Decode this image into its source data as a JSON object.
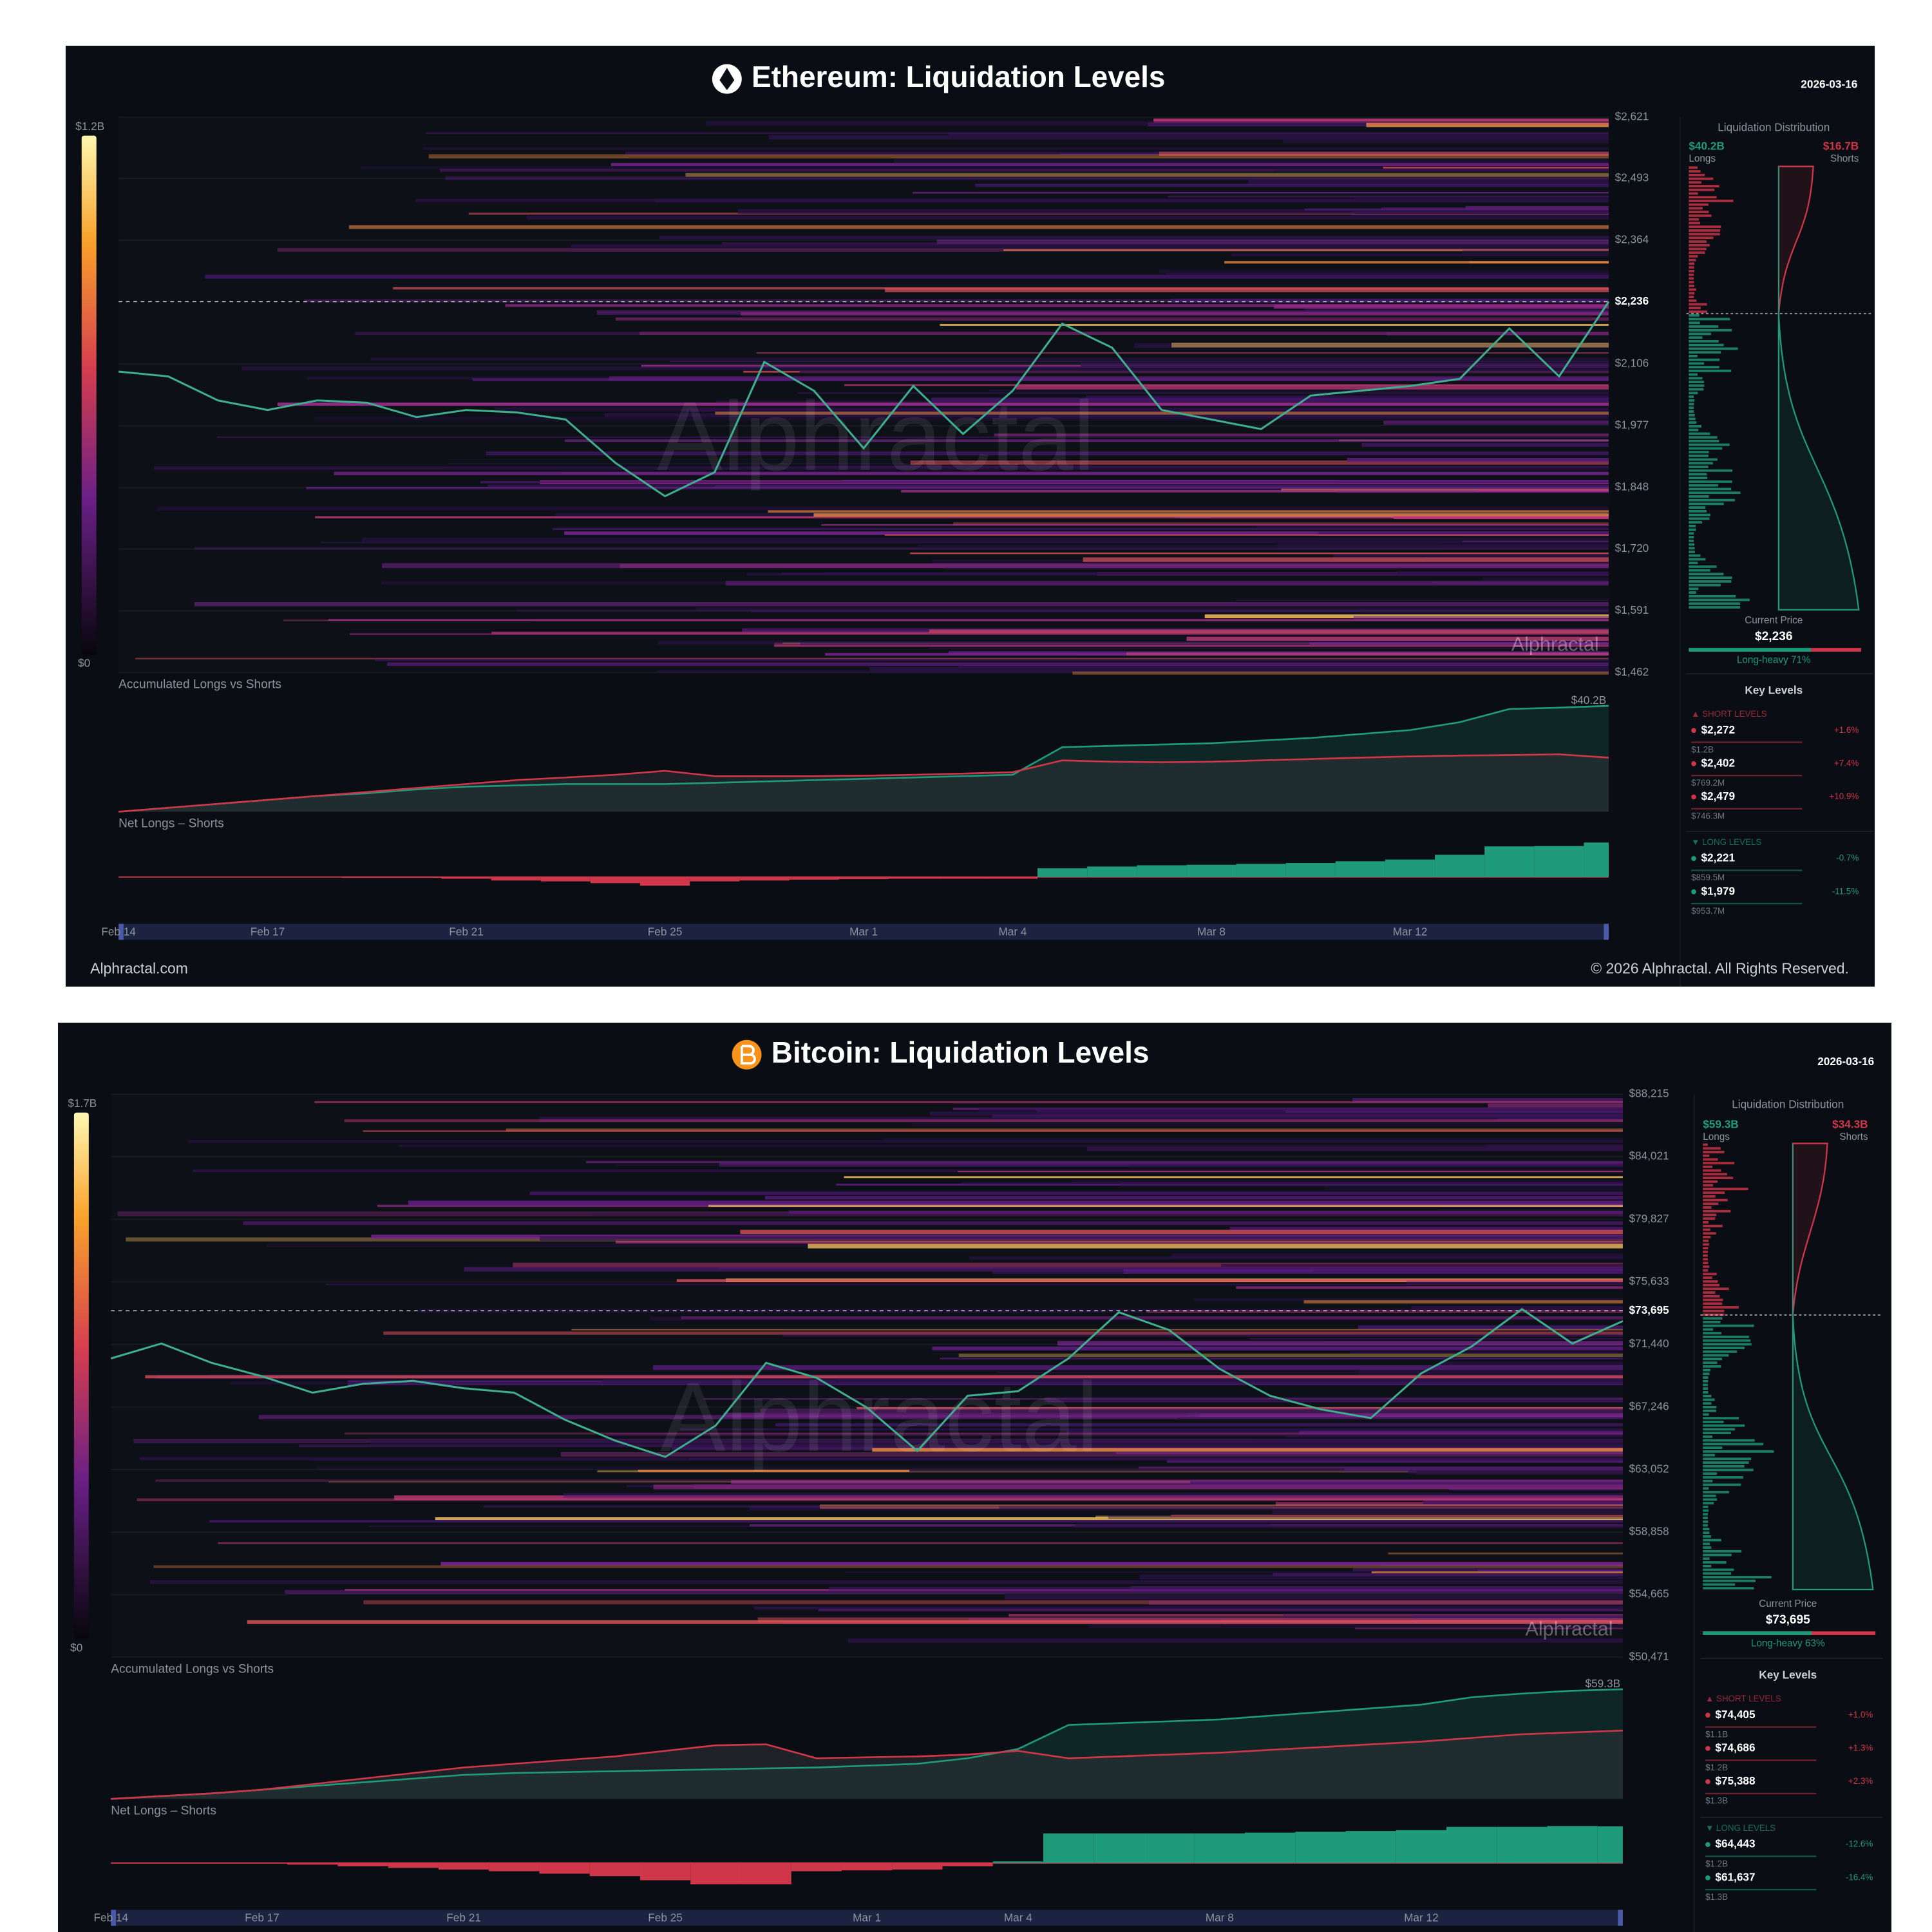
{
  "chart_data": [
    {
      "type": "line",
      "title": "Ethereum: Liquidation Levels",
      "date": "2026-03-16",
      "color_scale": {
        "max_label": "$1.2B",
        "min_label": "$0"
      },
      "x": [
        "Feb 14",
        "Feb 15",
        "Feb 16",
        "Feb 17",
        "Feb 18",
        "Feb 19",
        "Feb 20",
        "Feb 21",
        "Feb 22",
        "Feb 23",
        "Feb 24",
        "Feb 25",
        "Feb 26",
        "Feb 27",
        "Feb 28",
        "Mar 1",
        "Mar 2",
        "Mar 3",
        "Mar 4",
        "Mar 5",
        "Mar 6",
        "Mar 7",
        "Mar 8",
        "Mar 9",
        "Mar 10",
        "Mar 11",
        "Mar 12",
        "Mar 13",
        "Mar 14",
        "Mar 15",
        "Mar 16"
      ],
      "xticks": [
        "Feb 14",
        "Feb 17",
        "Feb 21",
        "Feb 25",
        "Mar 1",
        "Mar 4",
        "Mar 8",
        "Mar 12"
      ],
      "ylim": [
        1462,
        2621
      ],
      "yticks": [
        {
          "value": 1462,
          "label": "$1,462"
        },
        {
          "value": 1591,
          "label": "$1,591"
        },
        {
          "value": 1720,
          "label": "$1,720"
        },
        {
          "value": 1848,
          "label": "$1,848"
        },
        {
          "value": 1977,
          "label": "$1,977"
        },
        {
          "value": 2106,
          "label": "$2,106"
        },
        {
          "value": 2364,
          "label": "$2,364"
        },
        {
          "value": 2493,
          "label": "$2,493"
        },
        {
          "value": 2621,
          "label": "$2,621"
        }
      ],
      "current_price": {
        "value": 2236,
        "label": "$2,236"
      },
      "color": "#3fae8f",
      "values": [
        2090,
        2080,
        2030,
        2010,
        2030,
        2025,
        1995,
        2010,
        2005,
        1990,
        1900,
        1830,
        1880,
        2110,
        2050,
        1930,
        2060,
        1960,
        2050,
        2190,
        2140,
        2010,
        1990,
        1970,
        2040,
        2050,
        2060,
        2075,
        2180,
        2080,
        2236
      ],
      "accumulated": {
        "title": "Accumulated Longs vs Shorts",
        "end_label": "$40.2B",
        "longs": {
          "color": "#1f9a7a",
          "values": [
            0,
            1.5,
            3,
            4.5,
            6,
            7,
            8.5,
            9.5,
            10,
            10.5,
            10.5,
            10.5,
            11,
            11.5,
            12,
            12.5,
            13,
            13.5,
            14,
            24.5,
            25,
            25.5,
            26,
            27,
            28,
            29.5,
            31,
            34,
            39,
            39.5,
            40.2
          ]
        },
        "shorts": {
          "color": "#d0364a",
          "values": [
            0,
            1.5,
            3,
            4.5,
            6,
            7.5,
            9,
            10.5,
            12,
            13,
            14,
            15.5,
            13.5,
            13.5,
            13.5,
            13.7,
            14,
            14.5,
            15,
            19.5,
            19,
            18.8,
            19,
            19.5,
            20,
            20.5,
            21,
            21.3,
            21.5,
            21.8,
            20.5
          ]
        }
      },
      "net": {
        "title": "Net Longs – Shorts"
      },
      "distribution": {
        "title": "Liquidation Distribution",
        "longs_total": "$40.2B",
        "longs_label": "Longs",
        "shorts_total": "$16.7B",
        "shorts_label": "Shorts",
        "current_price_label": "Current Price",
        "bias": "Long-heavy 71%",
        "long_share": 71
      },
      "key_levels": {
        "title": "Key Levels",
        "short_heading": "▲ SHORT LEVELS",
        "short": [
          {
            "price": "$2,272",
            "change": "+1.6%",
            "size": "$1.2B"
          },
          {
            "price": "$2,402",
            "change": "+7.4%",
            "size": "$769.2M"
          },
          {
            "price": "$2,479",
            "change": "+10.9%",
            "size": "$746.3M"
          }
        ],
        "long_heading": "▼ LONG LEVELS",
        "long": [
          {
            "price": "$2,221",
            "change": "-0.7%",
            "size": "$859.5M"
          },
          {
            "price": "$1,979",
            "change": "-11.5%",
            "size": "$953.7M"
          }
        ]
      },
      "watermark": "Alphractal",
      "footer": {
        "left": "Alphractal.com",
        "right": "© 2026 Alphractal. All Rights Reserved."
      }
    },
    {
      "type": "line",
      "title": "Bitcoin: Liquidation Levels",
      "date": "2026-03-16",
      "color_scale": {
        "max_label": "$1.7B",
        "min_label": "$0"
      },
      "x": [
        "Feb 14",
        "Feb 15",
        "Feb 16",
        "Feb 17",
        "Feb 18",
        "Feb 19",
        "Feb 20",
        "Feb 21",
        "Feb 22",
        "Feb 23",
        "Feb 24",
        "Feb 25",
        "Feb 26",
        "Feb 27",
        "Feb 28",
        "Mar 1",
        "Mar 2",
        "Mar 3",
        "Mar 4",
        "Mar 5",
        "Mar 6",
        "Mar 7",
        "Mar 8",
        "Mar 9",
        "Mar 10",
        "Mar 11",
        "Mar 12",
        "Mar 13",
        "Mar 14",
        "Mar 15",
        "Mar 16"
      ],
      "xticks": [
        "Feb 14",
        "Feb 17",
        "Feb 21",
        "Feb 25",
        "Mar 1",
        "Mar 4",
        "Mar 8",
        "Mar 12"
      ],
      "ylim": [
        50471,
        88215
      ],
      "yticks": [
        {
          "value": 50471,
          "label": "$50,471"
        },
        {
          "value": 54665,
          "label": "$54,665"
        },
        {
          "value": 58858,
          "label": "$58,858"
        },
        {
          "value": 63052,
          "label": "$63,052"
        },
        {
          "value": 67246,
          "label": "$67,246"
        },
        {
          "value": 71440,
          "label": "$71,440"
        },
        {
          "value": 75633,
          "label": "$75,633"
        },
        {
          "value": 79827,
          "label": "$79,827"
        },
        {
          "value": 84021,
          "label": "$84,021"
        },
        {
          "value": 88215,
          "label": "$88,215"
        }
      ],
      "current_price": {
        "value": 73695,
        "label": "$73,695"
      },
      "color": "#3fae8f",
      "values": [
        70500,
        71500,
        70200,
        69300,
        68200,
        68800,
        69000,
        68500,
        68200,
        66400,
        65000,
        63900,
        66000,
        70200,
        69200,
        67200,
        64300,
        68000,
        68300,
        70500,
        73600,
        72400,
        69800,
        68000,
        67100,
        66500,
        69500,
        71300,
        73800,
        71500,
        73000
      ],
      "accumulated": {
        "title": "Accumulated Longs vs Shorts",
        "end_label": "$59.3B",
        "longs": {
          "color": "#1f9a7a",
          "values": [
            0,
            1.5,
            3,
            5,
            7,
            9,
            11,
            13,
            14,
            14.5,
            15,
            15.5,
            16,
            16.5,
            17,
            18,
            19,
            22,
            27,
            40,
            41,
            42,
            43,
            45,
            47,
            49,
            51,
            55,
            57,
            58.5,
            59.3
          ]
        },
        "shorts": {
          "color": "#d0364a",
          "values": [
            0,
            1.5,
            3,
            5,
            8,
            11,
            14,
            17,
            19,
            21,
            23,
            26,
            29,
            29.5,
            22,
            22.5,
            23,
            24,
            26,
            22,
            23,
            24,
            25,
            26.5,
            28,
            29.5,
            31,
            33,
            35,
            36,
            37
          ]
        }
      },
      "net": {
        "title": "Net Longs – Shorts"
      },
      "distribution": {
        "title": "Liquidation Distribution",
        "longs_total": "$59.3B",
        "longs_label": "Longs",
        "shorts_total": "$34.3B",
        "shorts_label": "Shorts",
        "current_price_label": "Current Price",
        "bias": "Long-heavy 63%",
        "long_share": 63
      },
      "key_levels": {
        "title": "Key Levels",
        "short_heading": "▲ SHORT LEVELS",
        "short": [
          {
            "price": "$74,405",
            "change": "+1.0%",
            "size": "$1.1B"
          },
          {
            "price": "$74,686",
            "change": "+1.3%",
            "size": "$1.2B"
          },
          {
            "price": "$75,388",
            "change": "+2.3%",
            "size": "$1.3B"
          }
        ],
        "long_heading": "▼ LONG LEVELS",
        "long": [
          {
            "price": "$64,443",
            "change": "-12.6%",
            "size": "$1.2B"
          },
          {
            "price": "$61,637",
            "change": "-16.4%",
            "size": "$1.3B"
          }
        ]
      },
      "watermark": "Alphractal"
    }
  ]
}
